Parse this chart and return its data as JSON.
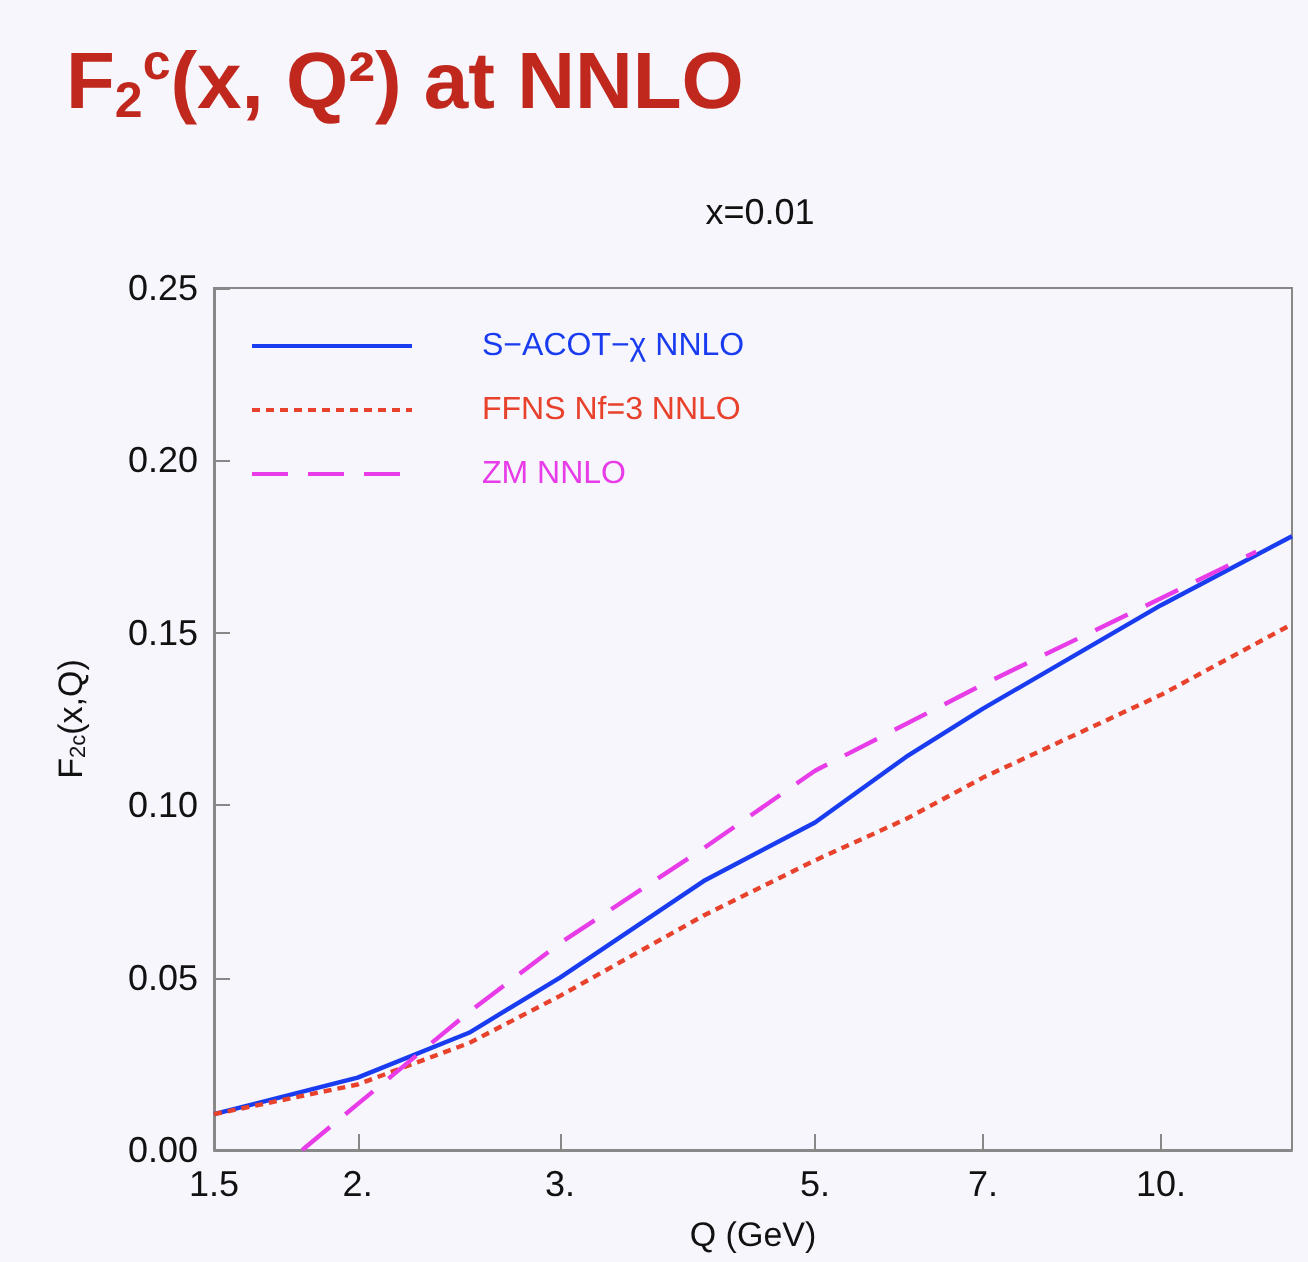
{
  "chart_data": {
    "type": "line",
    "title": "F$_{2}$$^{c}$(x, Q²) at NNLO",
    "subtitle": "x=0.01",
    "xlabel": "Q (GeV)",
    "ylabel": "F$_{2c}$(x,Q)",
    "series": [
      {
        "name": "S−ACOT−χ NNLO",
        "color": "#1a3cf0",
        "line_style": "solid",
        "x": [
          1.5,
          2,
          2.5,
          3,
          4,
          5,
          6,
          7,
          10,
          13
        ],
        "values": [
          0.0104,
          0.021,
          0.034,
          0.05,
          0.078,
          0.095,
          0.114,
          0.128,
          0.158,
          0.178
        ]
      },
      {
        "name": "FFNS Nf=3 NNLO",
        "color": "#e8412c",
        "line_style": "dotted",
        "x": [
          1.5,
          2,
          2.5,
          3,
          4,
          5,
          6,
          7,
          10,
          13
        ],
        "values": [
          0.0104,
          0.019,
          0.031,
          0.0447,
          0.068,
          0.084,
          0.096,
          0.108,
          0.132,
          0.1525
        ]
      },
      {
        "name": "ZM NNLO",
        "color": "#e83ce8",
        "line_style": "dashed",
        "x": [
          1.79,
          2,
          2.5,
          3,
          4,
          5,
          7,
          10,
          12.1
        ],
        "values": [
          0,
          0.0133,
          0.04,
          0.06,
          0.0875,
          0.11,
          0.135,
          0.16,
          0.1735
        ]
      }
    ],
    "log": "x",
    "xlim": [
      1.5,
      13
    ],
    "xticks": [
      1.5,
      {
        "value": 2,
        "label": "2."
      },
      {
        "value": 3,
        "label": "3."
      },
      {
        "value": 5,
        "label": "5."
      },
      {
        "value": 7,
        "label": "7."
      },
      {
        "value": 10,
        "label": "10."
      }
    ],
    "ylim": [
      0,
      0.25
    ],
    "yticks": [
      {
        "value": 0,
        "label": "0.00"
      },
      0.05,
      {
        "value": 0.1,
        "label": "0.10"
      },
      0.15,
      {
        "value": 0.2,
        "label": "0.20"
      },
      0.25
    ],
    "grid": false,
    "legend": "top left",
    "marker": "none"
  }
}
